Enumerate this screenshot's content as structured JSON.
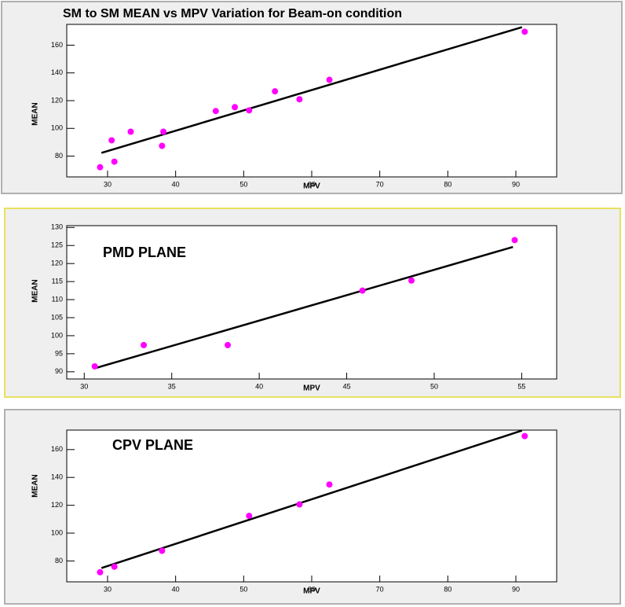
{
  "chart_data": [
    {
      "type": "scatter",
      "title": "SM to SM MEAN vs MPV Variation for Beam-on condition",
      "x_label": "MPV",
      "y_label": "MEAN",
      "x": [
        28.9,
        30.6,
        31.0,
        33.4,
        38.2,
        38.0,
        45.9,
        48.7,
        50.8,
        54.6,
        58.2,
        62.6,
        91.3
      ],
      "values": [
        72.0,
        91.4,
        76.0,
        97.6,
        97.6,
        87.4,
        112.5,
        115.3,
        113.0,
        126.7,
        121.0,
        135.0,
        169.7
      ],
      "color": "#ff00ff",
      "fit": {
        "x": [
          29.1,
          90.9
        ],
        "y": [
          82.3,
          173.0
        ],
        "color": "#000000"
      },
      "xlim": [
        24,
        96
      ],
      "ylim": [
        65,
        175
      ],
      "xticks": [
        30,
        40,
        50,
        60,
        70,
        80,
        90
      ],
      "yticks": [
        80,
        100,
        120,
        140,
        160
      ]
    },
    {
      "type": "scatter",
      "annotation": "PMD PLANE",
      "x_label": "MPV",
      "y_label": "MEAN",
      "x": [
        30.6,
        33.4,
        38.2,
        45.9,
        48.7,
        54.6
      ],
      "values": [
        91.5,
        97.4,
        97.4,
        112.5,
        115.3,
        126.5
      ],
      "color": "#ff00ff",
      "fit": {
        "x": [
          30.7,
          54.5
        ],
        "y": [
          91.1,
          124.6
        ],
        "color": "#000000"
      },
      "xlim": [
        29,
        57
      ],
      "ylim": [
        88,
        130.5
      ],
      "xticks": [
        30,
        35,
        40,
        45,
        50,
        55
      ],
      "yticks": [
        90,
        95,
        100,
        105,
        110,
        115,
        120,
        125,
        130
      ]
    },
    {
      "type": "scatter",
      "annotation": "CPV PLANE",
      "x_label": "MPV",
      "y_label": "MEAN",
      "x": [
        28.9,
        31.0,
        38.0,
        50.8,
        58.2,
        62.6,
        91.3
      ],
      "values": [
        71.9,
        75.9,
        87.3,
        112.4,
        120.6,
        134.9,
        169.7
      ],
      "color": "#ff00ff",
      "fit": {
        "x": [
          29.1,
          90.9
        ],
        "y": [
          74.9,
          173.7
        ],
        "color": "#000000"
      },
      "xlim": [
        24,
        96
      ],
      "ylim": [
        65,
        174
      ],
      "xticks": [
        30,
        40,
        50,
        60,
        70,
        80,
        90
      ],
      "yticks": [
        80,
        100,
        120,
        140,
        160
      ]
    }
  ]
}
